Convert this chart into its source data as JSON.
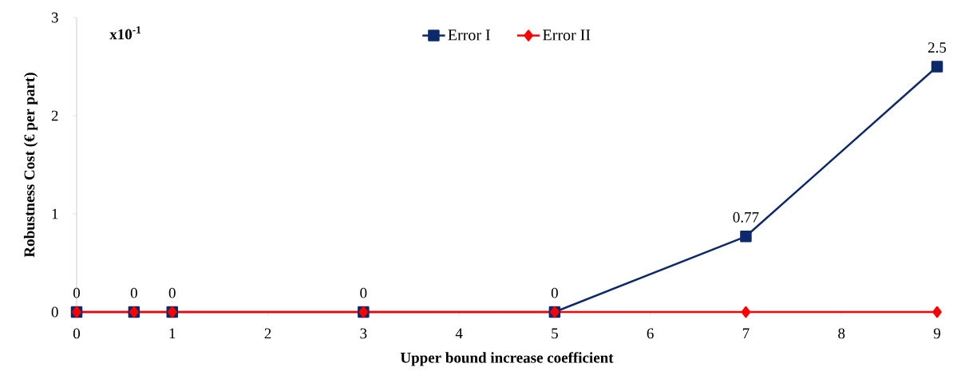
{
  "chart_data": {
    "type": "line",
    "xlabel": "Upper bound increase coefficient",
    "ylabel": "Robustness Cost (€ per part)",
    "annotations": [
      "x10$^{-1}$"
    ],
    "x": [
      0,
      0.6,
      1,
      3,
      5,
      7,
      9
    ],
    "series": [
      {
        "name": "Error I",
        "color": "#0c2a6b",
        "marker": "square",
        "values": [
          0,
          0,
          0,
          0,
          0,
          0.77,
          2.5
        ],
        "value_labels": [
          "0",
          "0",
          "0",
          "0",
          "0",
          "0.77",
          "2.5"
        ]
      },
      {
        "name": "Error II",
        "color": "#ff0000",
        "marker": "diamond",
        "values": [
          0,
          0,
          0,
          0,
          0,
          0,
          0
        ]
      }
    ],
    "xlim": [
      0,
      9
    ],
    "ylim": [
      0,
      3
    ],
    "xticks": [
      0,
      1,
      2,
      3,
      4,
      5,
      6,
      7,
      8,
      9
    ],
    "yticks": [
      0,
      1,
      2,
      3
    ],
    "legend": "top",
    "grid": false,
    "line_style": "solid"
  }
}
